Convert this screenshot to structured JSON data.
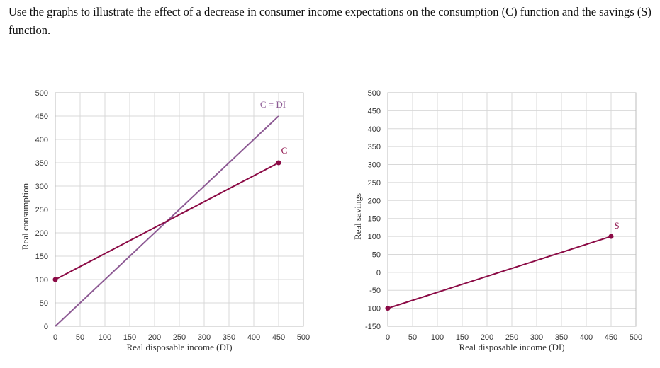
{
  "question": "Use the graphs to illustrate the effect of a decrease in consumer income expectations on the consumption (C) function and the savings (S) function.",
  "colors": {
    "consumption": "#8b0a45",
    "reference": "#8d5a94",
    "grid": "#d8d8d8"
  },
  "chart_data": [
    {
      "type": "line",
      "xlabel": "Real disposable income (DI)",
      "ylabel": "Real consumption",
      "xlim": [
        0,
        500
      ],
      "ylim": [
        0,
        500
      ],
      "xticks": [
        0,
        50,
        100,
        150,
        200,
        250,
        300,
        350,
        400,
        450,
        500
      ],
      "yticks": [
        0,
        50,
        100,
        150,
        200,
        250,
        300,
        350,
        400,
        450,
        500
      ],
      "grid": true,
      "series": [
        {
          "name": "C = DI",
          "color": "#8d5a94",
          "markers": false,
          "points": [
            [
              0,
              0
            ],
            [
              450,
              450
            ]
          ]
        },
        {
          "name": "C",
          "color": "#8b0a45",
          "markers": true,
          "points": [
            [
              0,
              100
            ],
            [
              450,
              350
            ]
          ]
        }
      ]
    },
    {
      "type": "line",
      "xlabel": "Real disposable income (DI)",
      "ylabel": "Real savings",
      "xlim": [
        0,
        500
      ],
      "ylim": [
        -150,
        500
      ],
      "xticks": [
        0,
        50,
        100,
        150,
        200,
        250,
        300,
        350,
        400,
        450,
        500
      ],
      "yticks": [
        -150,
        -100,
        -50,
        0,
        50,
        100,
        150,
        200,
        250,
        300,
        350,
        400,
        450,
        500
      ],
      "grid": true,
      "series": [
        {
          "name": "S",
          "color": "#8b0a45",
          "markers": true,
          "points": [
            [
              0,
              -100
            ],
            [
              450,
              100
            ]
          ]
        }
      ]
    }
  ]
}
